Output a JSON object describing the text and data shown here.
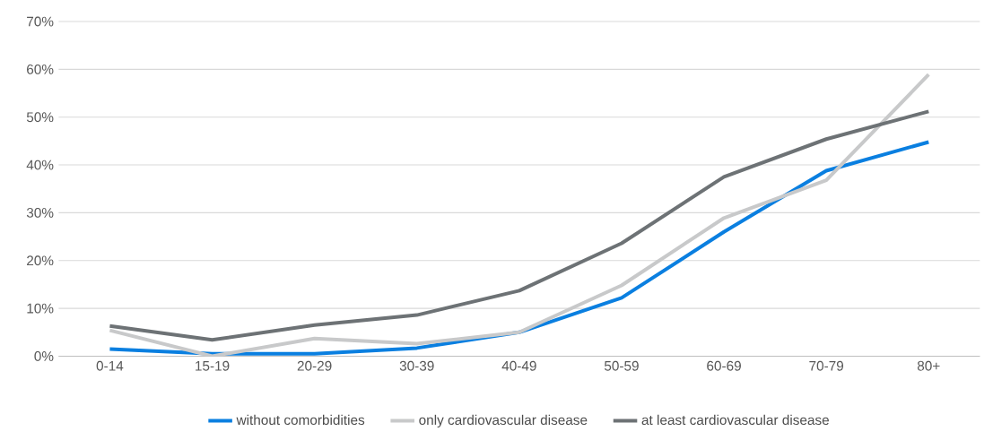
{
  "chart_data": {
    "type": "line",
    "categories": [
      "0-14",
      "15-19",
      "20-29",
      "30-39",
      "40-49",
      "50-59",
      "60-69",
      "70-79",
      "80+"
    ],
    "series": [
      {
        "name": "without comorbidities",
        "color": "#0a7fe0",
        "values": [
          1.5,
          0.5,
          0.5,
          1.7,
          5.0,
          12.2,
          26.0,
          38.8,
          44.8
        ]
      },
      {
        "name": "only cardiovascular disease",
        "color": "#c8c9ca",
        "values": [
          5.4,
          0.0,
          3.7,
          2.6,
          5.0,
          14.8,
          28.9,
          36.8,
          58.9
        ]
      },
      {
        "name": "at least cardiovascular disease",
        "color": "#6d7275",
        "values": [
          6.3,
          3.4,
          6.5,
          8.6,
          13.7,
          23.6,
          37.5,
          45.4,
          51.2
        ]
      }
    ],
    "ylim": [
      0,
      70
    ],
    "yticks": [
      {
        "value": 0,
        "label": "0%"
      },
      {
        "value": 10,
        "label": "10%"
      },
      {
        "value": 20,
        "label": "20%"
      },
      {
        "value": 30,
        "label": "30%"
      },
      {
        "value": 40,
        "label": "40%"
      },
      {
        "value": 50,
        "label": "50%"
      },
      {
        "value": 60,
        "label": "60%"
      },
      {
        "value": 70,
        "label": "70%"
      }
    ],
    "grid": "y",
    "legend": "bottom",
    "marker": "none",
    "line_style": "solid"
  }
}
